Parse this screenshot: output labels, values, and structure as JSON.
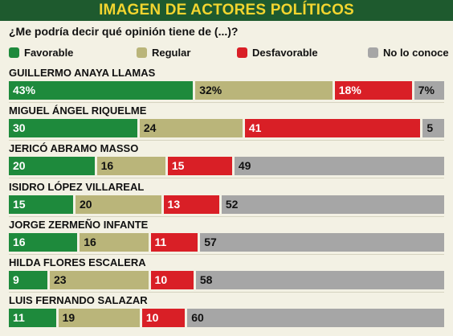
{
  "header": {
    "title": "IMAGEN DE ACTORES POLÍTICOS"
  },
  "question": "¿Me podría decir qué opinión tiene de (...)?",
  "chart_data": {
    "type": "bar",
    "orientation": "horizontal",
    "stacked": true,
    "categories": [
      "GUILLERMO ANAYA LLAMAS",
      "MIGUEL ÁNGEL RIQUELME",
      "JERICÓ ABRAMO MASSO",
      "ISIDRO LÓPEZ VILLAREAL",
      "JORGE ZERMEÑO INFANTE",
      "HILDA FLORES ESCALERA",
      "LUIS FERNANDO SALAZAR"
    ],
    "series": [
      {
        "name": "Favorable",
        "color": "#1e8a3c",
        "values": [
          43,
          30,
          20,
          15,
          16,
          9,
          11
        ],
        "labels": [
          "43%",
          "30",
          "20",
          "15",
          "16",
          "9",
          "11"
        ]
      },
      {
        "name": "Regular",
        "color": "#bab57a",
        "values": [
          32,
          24,
          16,
          20,
          16,
          23,
          19
        ],
        "labels": [
          "32%",
          "24",
          "16",
          "20",
          "16",
          "23",
          "19"
        ]
      },
      {
        "name": "Desfavorable",
        "color": "#d91f26",
        "values": [
          18,
          41,
          15,
          13,
          11,
          10,
          10
        ],
        "labels": [
          "18%",
          "41",
          "15",
          "13",
          "11",
          "10",
          "10"
        ]
      },
      {
        "name": "No lo conoce",
        "color": "#a6a6a6",
        "values": [
          7,
          5,
          49,
          52,
          57,
          58,
          60
        ],
        "labels": [
          "7%",
          "5",
          "49",
          "52",
          "57",
          "58",
          "60"
        ]
      }
    ],
    "xlim": [
      0,
      100
    ],
    "legend_position": "top"
  }
}
